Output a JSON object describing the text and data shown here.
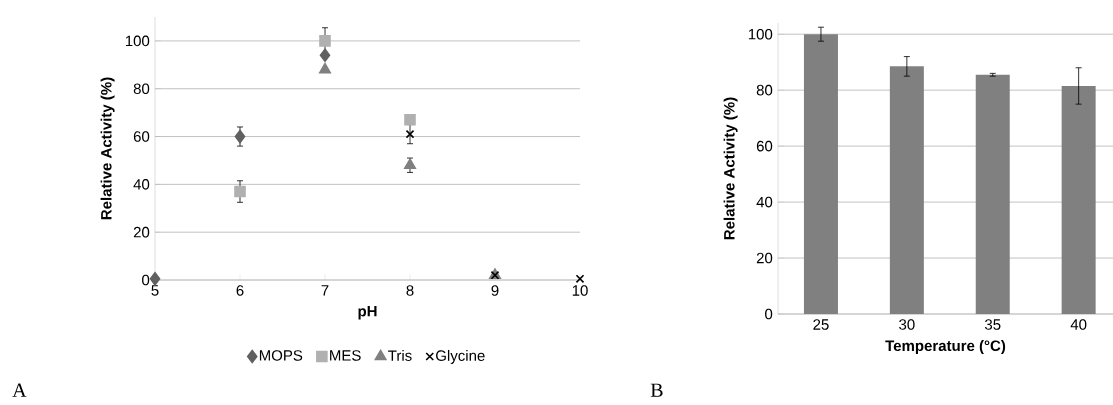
{
  "chart_data": [
    {
      "type": "scatter",
      "xlabel": "pH",
      "ylabel": "Relative Activity (%)",
      "xlim": [
        5,
        10
      ],
      "ylim": [
        0,
        110
      ],
      "xticks": [
        5,
        6,
        7,
        8,
        9,
        10
      ],
      "yticks": [
        0,
        20,
        40,
        60,
        80,
        100
      ],
      "grid": "y",
      "legend": "bottom",
      "annotations": [
        "A"
      ],
      "series": [
        {
          "name": "MOPS",
          "color": "#606060",
          "marker": "diamond",
          "x": [
            5,
            6,
            7
          ],
          "values": [
            0.5,
            60,
            94
          ],
          "errors": [
            null,
            4,
            null
          ]
        },
        {
          "name": "MES",
          "color": "#b0b0b0",
          "marker": "square",
          "x": [
            6,
            7,
            8
          ],
          "values": [
            37,
            100,
            67
          ],
          "errors": [
            4.5,
            5.5,
            null
          ]
        },
        {
          "name": "Tris",
          "color": "#808080",
          "marker": "triangle",
          "x": [
            7,
            8,
            9
          ],
          "values": [
            88,
            48,
            2
          ],
          "errors": [
            null,
            3,
            null
          ]
        },
        {
          "name": "Glycine",
          "color": "#000000",
          "marker": "cross",
          "x": [
            8,
            9,
            10
          ],
          "values": [
            61,
            2,
            0.5
          ],
          "errors": [
            4,
            null,
            null
          ]
        }
      ]
    },
    {
      "type": "bar",
      "xlabel": "Temperature (°C)",
      "ylabel": "Relative Activity (%)",
      "categories": [
        "25",
        "30",
        "35",
        "40"
      ],
      "values": [
        100,
        88.5,
        85.5,
        81.5
      ],
      "errors": [
        2.5,
        3.5,
        0.5,
        6.5
      ],
      "color": "#808080",
      "ylim": [
        0,
        104
      ],
      "yticks": [
        0,
        20,
        40,
        60,
        80,
        100
      ],
      "grid": "y",
      "annotations": [
        "B"
      ]
    }
  ]
}
